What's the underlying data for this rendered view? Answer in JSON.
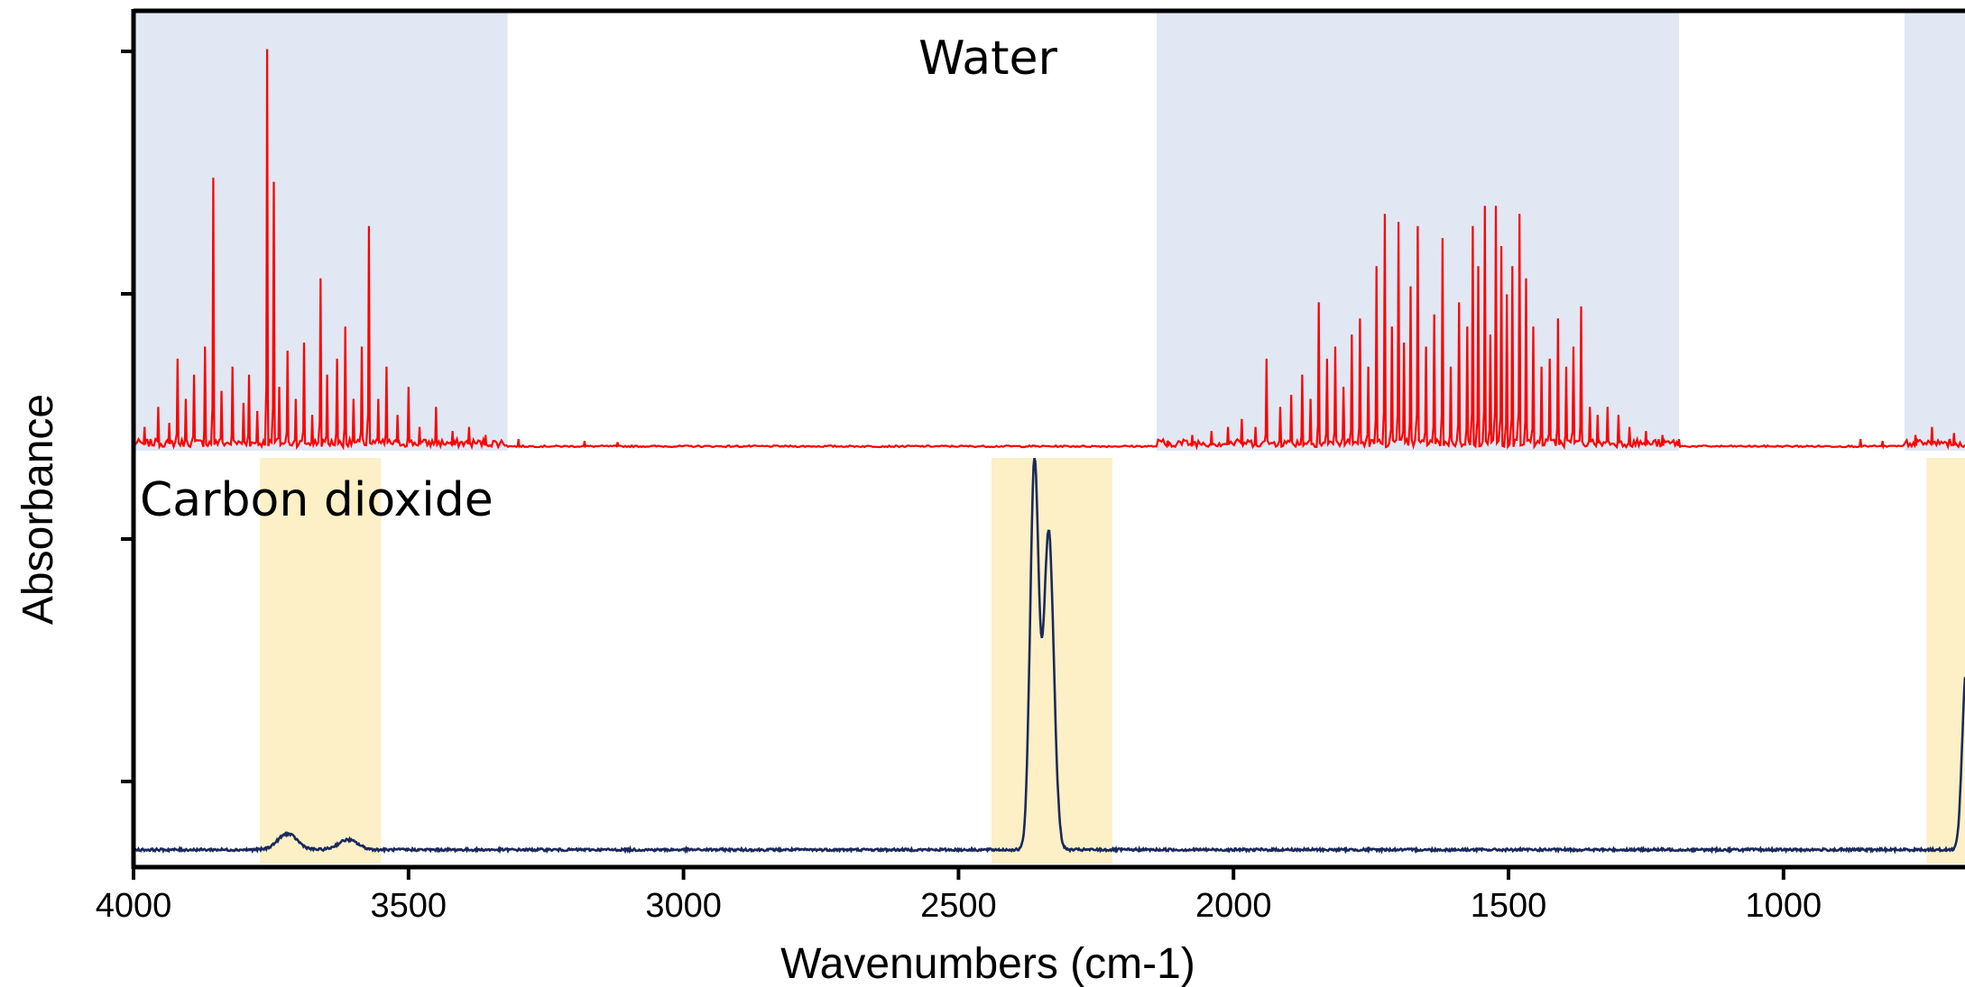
{
  "chart_data": {
    "type": "line",
    "title": "",
    "xlabel": "Wavenumbers (cm-1)",
    "ylabel": "Absorbance",
    "xlim": [
      4000,
      670
    ],
    "x_reversed": true,
    "x_ticks": [
      4000,
      3500,
      3000,
      2500,
      2000,
      1500,
      1000
    ],
    "x_tick_labels": [
      "4000",
      "3500",
      "3000",
      "2500",
      "2000",
      "1500",
      "1000"
    ],
    "y_tick_labels_shown": false,
    "grid": false,
    "legend": "none",
    "colors": {
      "water_line": "#ff0000",
      "co2_line": "#1a2a5c",
      "water_band": "#e1e8f4",
      "co2_band": "#fdf0c6",
      "axis": "#000000"
    },
    "panels": [
      {
        "label": "Water",
        "series_color": "#ff0000",
        "ylim": [
          0,
          1
        ],
        "shaded_bands": [
          [
            4000,
            3320
          ],
          [
            2140,
            1190
          ],
          [
            780,
            670
          ]
        ],
        "peaks": [
          [
            3980,
            0.05
          ],
          [
            3955,
            0.1
          ],
          [
            3935,
            0.06
          ],
          [
            3920,
            0.22
          ],
          [
            3905,
            0.12
          ],
          [
            3890,
            0.18
          ],
          [
            3870,
            0.25
          ],
          [
            3855,
            0.67
          ],
          [
            3840,
            0.14
          ],
          [
            3820,
            0.2
          ],
          [
            3800,
            0.11
          ],
          [
            3790,
            0.18
          ],
          [
            3775,
            0.09
          ],
          [
            3757,
            0.99
          ],
          [
            3745,
            0.66
          ],
          [
            3735,
            0.15
          ],
          [
            3720,
            0.24
          ],
          [
            3705,
            0.12
          ],
          [
            3690,
            0.26
          ],
          [
            3675,
            0.08
          ],
          [
            3660,
            0.42
          ],
          [
            3648,
            0.18
          ],
          [
            3630,
            0.22
          ],
          [
            3615,
            0.3
          ],
          [
            3600,
            0.12
          ],
          [
            3585,
            0.25
          ],
          [
            3572,
            0.55
          ],
          [
            3555,
            0.12
          ],
          [
            3540,
            0.2
          ],
          [
            3520,
            0.08
          ],
          [
            3500,
            0.15
          ],
          [
            3480,
            0.05
          ],
          [
            3450,
            0.1
          ],
          [
            3420,
            0.04
          ],
          [
            3390,
            0.05
          ],
          [
            3360,
            0.03
          ],
          [
            3300,
            0.02
          ],
          [
            3180,
            0.015
          ],
          [
            3120,
            0.012
          ],
          [
            2120,
            0.015
          ],
          [
            2075,
            0.03
          ],
          [
            2040,
            0.04
          ],
          [
            2010,
            0.05
          ],
          [
            1985,
            0.07
          ],
          [
            1960,
            0.05
          ],
          [
            1940,
            0.22
          ],
          [
            1915,
            0.1
          ],
          [
            1895,
            0.13
          ],
          [
            1875,
            0.18
          ],
          [
            1860,
            0.12
          ],
          [
            1845,
            0.36
          ],
          [
            1830,
            0.22
          ],
          [
            1815,
            0.25
          ],
          [
            1800,
            0.15
          ],
          [
            1785,
            0.28
          ],
          [
            1770,
            0.32
          ],
          [
            1755,
            0.2
          ],
          [
            1740,
            0.45
          ],
          [
            1725,
            0.58
          ],
          [
            1712,
            0.3
          ],
          [
            1700,
            0.56
          ],
          [
            1690,
            0.26
          ],
          [
            1678,
            0.4
          ],
          [
            1665,
            0.55
          ],
          [
            1650,
            0.25
          ],
          [
            1635,
            0.33
          ],
          [
            1620,
            0.52
          ],
          [
            1605,
            0.2
          ],
          [
            1590,
            0.36
          ],
          [
            1575,
            0.3
          ],
          [
            1565,
            0.55
          ],
          [
            1555,
            0.45
          ],
          [
            1543,
            0.6
          ],
          [
            1533,
            0.28
          ],
          [
            1523,
            0.6
          ],
          [
            1513,
            0.5
          ],
          [
            1503,
            0.38
          ],
          [
            1493,
            0.45
          ],
          [
            1480,
            0.58
          ],
          [
            1468,
            0.42
          ],
          [
            1455,
            0.3
          ],
          [
            1440,
            0.2
          ],
          [
            1425,
            0.22
          ],
          [
            1410,
            0.32
          ],
          [
            1395,
            0.2
          ],
          [
            1382,
            0.25
          ],
          [
            1368,
            0.35
          ],
          [
            1352,
            0.1
          ],
          [
            1338,
            0.08
          ],
          [
            1320,
            0.1
          ],
          [
            1300,
            0.08
          ],
          [
            1280,
            0.05
          ],
          [
            1250,
            0.04
          ],
          [
            1220,
            0.03
          ],
          [
            1190,
            0.02
          ],
          [
            860,
            0.02
          ],
          [
            820,
            0.015
          ],
          [
            760,
            0.03
          ],
          [
            730,
            0.05
          ],
          [
            690,
            0.035
          ]
        ]
      },
      {
        "label": "Carbon dioxide",
        "series_color": "#1a2a5c",
        "ylim": [
          0,
          1
        ],
        "shaded_bands": [
          [
            3770,
            3550
          ],
          [
            2440,
            2220
          ],
          [
            740,
            670
          ]
        ],
        "baseline": 0.03,
        "features": [
          {
            "center": 3720,
            "height": 0.04,
            "width": 25
          },
          {
            "center": 3610,
            "height": 0.025,
            "width": 25
          },
          {
            "center": 2362,
            "height": 0.97,
            "width": 11
          },
          {
            "center": 2336,
            "height": 0.8,
            "width": 13
          },
          {
            "center": 668,
            "height": 0.45,
            "width": 10
          }
        ]
      }
    ]
  }
}
